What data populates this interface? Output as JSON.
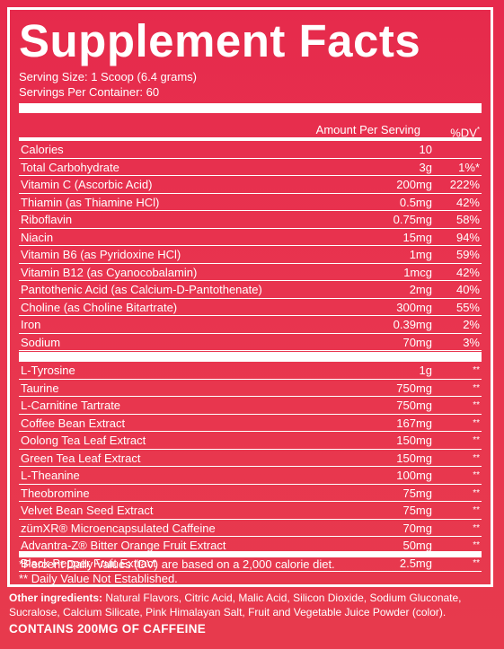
{
  "title": "Supplement Facts",
  "serving_size": "Serving Size: 1 Scoop (6.4 grams)",
  "servings_per_container": "Servings Per Container: 60",
  "header": {
    "amount": "Amount Per Serving",
    "dv": "%DV",
    "dv_mark": "*"
  },
  "nutrients": [
    {
      "name": "Calories",
      "amount": "10",
      "dv": ""
    },
    {
      "name": "Total Carbohydrate",
      "amount": "3g",
      "dv": "1%*"
    },
    {
      "name": "Vitamin C (Ascorbic Acid)",
      "amount": "200mg",
      "dv": "222%"
    },
    {
      "name": "Thiamin (as Thiamine HCl)",
      "amount": "0.5mg",
      "dv": "42%"
    },
    {
      "name": "Riboflavin",
      "amount": "0.75mg",
      "dv": "58%"
    },
    {
      "name": "Niacin",
      "amount": "15mg",
      "dv": "94%"
    },
    {
      "name": "Vitamin B6 (as Pyridoxine HCl)",
      "amount": "1mg",
      "dv": "59%"
    },
    {
      "name": "Vitamin B12 (as Cyanocobalamin)",
      "amount": "1mcg",
      "dv": "42%"
    },
    {
      "name": "Pantothenic Acid (as Calcium-D-Pantothenate)",
      "amount": "2mg",
      "dv": "40%"
    },
    {
      "name": "Choline (as Choline Bitartrate)",
      "amount": "300mg",
      "dv": "55%"
    },
    {
      "name": "Iron",
      "amount": "0.39mg",
      "dv": "2%"
    },
    {
      "name": "Sodium",
      "amount": "70mg",
      "dv": "3%"
    }
  ],
  "ingredients": [
    {
      "name": "L-Tyrosine",
      "amount": "1g",
      "dv": "**"
    },
    {
      "name": "Taurine",
      "amount": "750mg",
      "dv": "**"
    },
    {
      "name": "L-Carnitine Tartrate",
      "amount": "750mg",
      "dv": "**"
    },
    {
      "name": "Coffee Bean Extract",
      "amount": "167mg",
      "dv": "**"
    },
    {
      "name": "Oolong Tea Leaf Extract",
      "amount": "150mg",
      "dv": "**"
    },
    {
      "name": "Green Tea Leaf Extract",
      "amount": "150mg",
      "dv": "**"
    },
    {
      "name": "L-Theanine",
      "amount": "100mg",
      "dv": "**"
    },
    {
      "name": "Theobromine",
      "amount": "75mg",
      "dv": "**"
    },
    {
      "name": "Velvet Bean Seed Extract",
      "amount": "75mg",
      "dv": "**"
    },
    {
      "name": "zümXR® Microencapsulated Caffeine",
      "amount": "70mg",
      "dv": "**"
    },
    {
      "name": "Advantra-Z® Bitter Orange Fruit Extract",
      "amount": "50mg",
      "dv": "**"
    },
    {
      "name": "Black Pepper Fruit Extract",
      "amount": "2.5mg",
      "dv": "**"
    }
  ],
  "footnote_dv": "*Percent Daily Values (DV) are based on a 2,000 calorie diet.",
  "footnote_nodv": "** Daily Value Not Established.",
  "other_ingredients_label": "Other ingredients:",
  "other_ingredients_text": " Natural Flavors, Citric Acid, Malic Acid, Silicon Dioxide, Sodium Gluconate, Sucralose, Calcium Silicate, Pink Himalayan Salt, Fruit and Vegetable Juice Powder (color).",
  "caffeine_statement": "CONTAINS 200MG OF CAFFEINE",
  "colors": {
    "background": "#e62a4c",
    "text": "#ffffff"
  }
}
